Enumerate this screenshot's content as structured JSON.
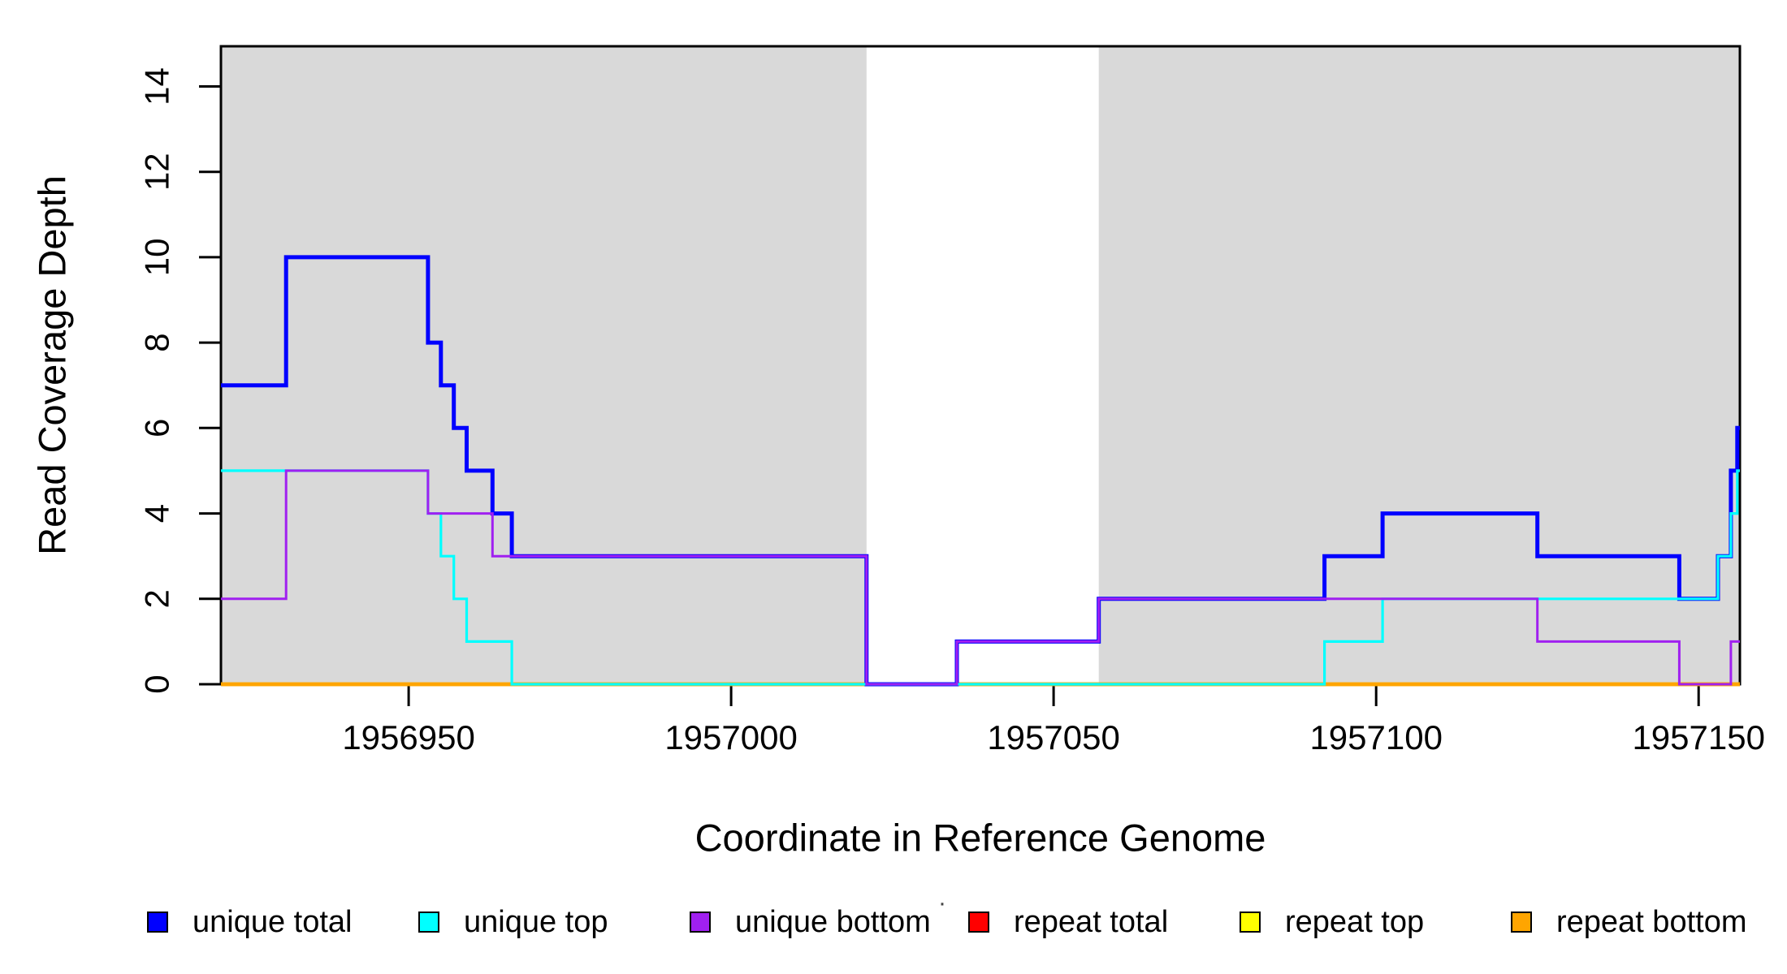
{
  "figure": {
    "background": "#FFFFFF",
    "border_color": "#000000",
    "shaded_band_color": "#D9D9D9"
  },
  "chart_data": {
    "type": "line",
    "subtype": "step",
    "title": "",
    "xlabel": "Coordinate in Reference Genome",
    "ylabel": "Read Coverage Depth",
    "xlim": [
      1956920.9,
      1957156.4
    ],
    "ylim": [
      0,
      14.94
    ],
    "x_ticks": [
      1956950,
      1957000,
      1957050,
      1957100,
      1957150
    ],
    "y_ticks": [
      0,
      2,
      4,
      6,
      8,
      10,
      12,
      14
    ],
    "grid": false,
    "shaded_regions": [
      {
        "name": "shaded-region-left",
        "x_start": 1956920.9,
        "x_end": 1957021,
        "color": "#D9D9D9"
      },
      {
        "name": "shaded-region-right",
        "x_start": 1957057,
        "x_end": 1957156.4,
        "color": "#D9D9D9"
      }
    ],
    "series": [
      {
        "name": "unique total",
        "color": "#0000FF",
        "line_width": 5,
        "steps": [
          [
            1956920.9,
            7
          ],
          [
            1956931,
            10
          ],
          [
            1956953,
            8
          ],
          [
            1956955,
            7
          ],
          [
            1956957,
            6
          ],
          [
            1956959,
            5
          ],
          [
            1956963,
            4
          ],
          [
            1956966,
            3
          ],
          [
            1957021,
            0
          ],
          [
            1957035,
            1
          ],
          [
            1957057,
            2
          ],
          [
            1957092,
            3
          ],
          [
            1957101,
            4
          ],
          [
            1957125,
            3
          ],
          [
            1957147,
            2
          ],
          [
            1957153,
            3
          ],
          [
            1957155,
            5
          ],
          [
            1957156,
            6
          ]
        ]
      },
      {
        "name": "unique top",
        "color": "#00FFFF",
        "line_width": 3.2,
        "steps": [
          [
            1956920.9,
            5
          ],
          [
            1956953,
            4
          ],
          [
            1956955,
            3
          ],
          [
            1956957,
            2
          ],
          [
            1956959,
            1
          ],
          [
            1956966,
            0
          ],
          [
            1957092,
            1
          ],
          [
            1957101,
            2
          ],
          [
            1957153,
            3
          ],
          [
            1957155,
            4
          ],
          [
            1957156,
            5
          ]
        ]
      },
      {
        "name": "unique bottom",
        "color": "#A020F0",
        "line_width": 3,
        "steps": [
          [
            1956920.9,
            2
          ],
          [
            1956931,
            5
          ],
          [
            1956953,
            4
          ],
          [
            1956963,
            3
          ],
          [
            1957021,
            0
          ],
          [
            1957035,
            1
          ],
          [
            1957057,
            2
          ],
          [
            1957125,
            1
          ],
          [
            1957147,
            0
          ],
          [
            1957155,
            1
          ]
        ]
      },
      {
        "name": "repeat total",
        "color": "#FF0000",
        "line_width": 4.5,
        "steps": [
          [
            1956920.9,
            0
          ]
        ]
      },
      {
        "name": "repeat top",
        "color": "#FFFF00",
        "line_width": 4.5,
        "steps": [
          [
            1956920.9,
            0
          ]
        ]
      },
      {
        "name": "repeat bottom",
        "color": "#FFA500",
        "line_width": 4.5,
        "steps": [
          [
            1956920.9,
            0
          ]
        ]
      }
    ],
    "draw_order": [
      3,
      4,
      5,
      0,
      1,
      2
    ],
    "legend": {
      "position": "bottom",
      "entries": [
        {
          "label": "unique total",
          "color": "#0000FF"
        },
        {
          "label": "unique top",
          "color": "#00FFFF"
        },
        {
          "label": "unique bottom",
          "color": "#A020F0"
        },
        {
          "label": "repeat total",
          "color": "#FF0000"
        },
        {
          "label": "repeat top",
          "color": "#FFFF00"
        },
        {
          "label": "repeat bottom",
          "color": "#FFA500"
        }
      ]
    }
  },
  "annotations": {
    "stray_mark": "·"
  }
}
